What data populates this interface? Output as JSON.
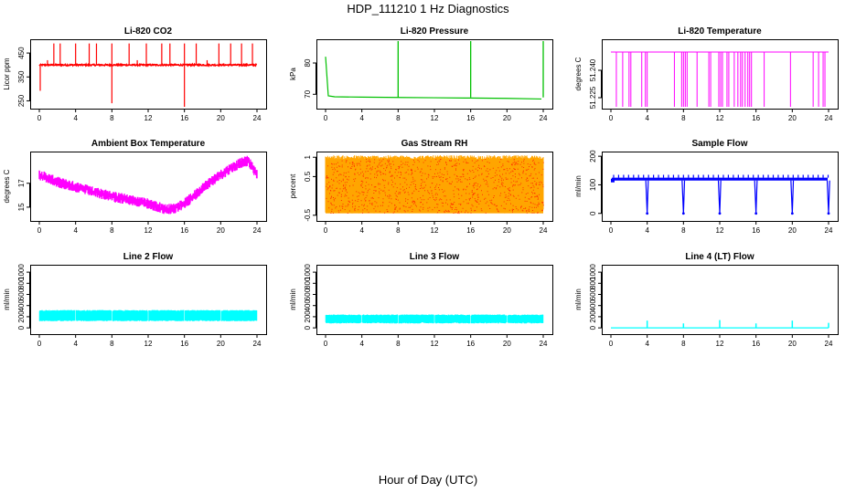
{
  "figure": {
    "title": "HDP_111210  1 Hz Diagnostics",
    "xlabel": "Hour of Day (UTC)"
  },
  "chart_data": [
    {
      "type": "line",
      "title": "Li-820 CO2",
      "ylabel": "Licor ppm",
      "color": "#ff0000",
      "xlim": [
        0,
        24
      ],
      "xticks": [
        0,
        4,
        8,
        12,
        16,
        20,
        24
      ],
      "ylim": [
        225,
        500
      ],
      "yticks": [
        250,
        350,
        450
      ],
      "baseline": 400,
      "noise": 6,
      "spikes": [
        {
          "x": 1.6,
          "y": 490
        },
        {
          "x": 2.3,
          "y": 490
        },
        {
          "x": 4.0,
          "y": 490
        },
        {
          "x": 5.5,
          "y": 490
        },
        {
          "x": 6.3,
          "y": 490
        },
        {
          "x": 8.0,
          "y": 490
        },
        {
          "x": 9.9,
          "y": 490
        },
        {
          "x": 11.8,
          "y": 490
        },
        {
          "x": 13.5,
          "y": 490
        },
        {
          "x": 14.4,
          "y": 490
        },
        {
          "x": 16.0,
          "y": 490
        },
        {
          "x": 17.3,
          "y": 490
        },
        {
          "x": 19.8,
          "y": 490
        },
        {
          "x": 21.1,
          "y": 490
        },
        {
          "x": 22.3,
          "y": 490
        },
        {
          "x": 23.5,
          "y": 490
        },
        {
          "x": 0.1,
          "y": 292
        },
        {
          "x": 8.0,
          "y": 240
        },
        {
          "x": 16.0,
          "y": 225
        },
        {
          "x": 0.9,
          "y": 420
        },
        {
          "x": 10.8,
          "y": 420
        },
        {
          "x": 18.5,
          "y": 420
        }
      ]
    },
    {
      "type": "line",
      "title": "Li-820 Pressure",
      "ylabel": "kPa",
      "color": "#00c000",
      "xlim": [
        0,
        24
      ],
      "xticks": [
        0,
        4,
        8,
        12,
        16,
        20,
        24
      ],
      "ylim": [
        66,
        87
      ],
      "yticks": [
        70,
        80
      ],
      "series": {
        "x": [
          0,
          0.3,
          1,
          4,
          8,
          12,
          16,
          20,
          23.8
        ],
        "y": [
          82,
          69.5,
          69.2,
          69.1,
          69.0,
          68.9,
          68.8,
          68.7,
          68.5
        ]
      },
      "spikes": [
        {
          "x": 8.0,
          "y": 87
        },
        {
          "x": 16.0,
          "y": 87
        },
        {
          "x": 24.0,
          "y": 87
        }
      ]
    },
    {
      "type": "line",
      "title": "Li-820 Temperature",
      "ylabel": "degrees C",
      "color": "#ff00ff",
      "xlim": [
        0,
        24
      ],
      "xticks": [
        0,
        4,
        8,
        12,
        16,
        20,
        24
      ],
      "ylim": [
        51.22,
        51.256
      ],
      "yticks": [
        51.225,
        51.24
      ],
      "ytick_labels": [
        "51.225",
        "51.240"
      ],
      "level": 51.25,
      "drops": [
        0.6,
        1.3,
        2.0,
        2.2,
        3.4,
        3.8,
        4.0,
        7.0,
        7.8,
        8.0,
        8.2,
        8.4,
        9.5,
        10.8,
        11.0,
        11.9,
        12.1,
        12.3,
        12.8,
        13.0,
        13.6,
        14.0,
        14.3,
        14.5,
        14.8,
        15.1,
        15.3,
        15.5,
        16.9,
        19.8,
        22.3,
        22.9,
        23.4,
        23.6
      ]
    },
    {
      "type": "line",
      "title": "Ambient Box Temperature",
      "ylabel": "degrees C",
      "color": "#ff00ff",
      "xlim": [
        0,
        24
      ],
      "xticks": [
        0,
        4,
        8,
        12,
        16,
        20,
        24
      ],
      "ylim": [
        14,
        19.5
      ],
      "yticks": [
        15,
        17
      ],
      "series": {
        "x": [
          0,
          2,
          4,
          6,
          8,
          10,
          12,
          14,
          15,
          16,
          17,
          18,
          19,
          20,
          21,
          22,
          23,
          24
        ],
        "y": [
          17.7,
          17.1,
          16.7,
          16.3,
          15.9,
          15.6,
          15.3,
          14.8,
          14.9,
          15.3,
          15.9,
          16.6,
          17.2,
          17.7,
          18.2,
          18.6,
          18.9,
          17.7
        ]
      },
      "band": 0.45
    },
    {
      "type": "line",
      "title": "Gas Stream RH",
      "ylabel": "percent",
      "color": "#ffa500",
      "color2": "#ff0000",
      "xlim": [
        0,
        24
      ],
      "xticks": [
        0,
        4,
        8,
        12,
        16,
        20,
        24
      ],
      "ylim": [
        -0.6,
        1.1
      ],
      "yticks": [
        -0.5,
        0.5,
        1.0
      ],
      "range": [
        -0.45,
        0.95
      ]
    },
    {
      "type": "line",
      "title": "Sample Flow",
      "ylabel": "ml/min",
      "color": "#0000ff",
      "xlim": [
        0,
        24
      ],
      "xticks": [
        0,
        4,
        8,
        12,
        16,
        20,
        24
      ],
      "ylim": [
        -20,
        210
      ],
      "yticks": [
        0,
        100,
        200
      ],
      "level": 115,
      "band_top": 125,
      "peak": 150,
      "dips": [
        4.0,
        8.0,
        12.0,
        16.0,
        20.0,
        24.0
      ]
    },
    {
      "type": "line",
      "title": "Line 2 Flow",
      "ylabel": "ml/min",
      "color": "#00ffff",
      "xlim": [
        0,
        24
      ],
      "xticks": [
        0,
        4,
        8,
        12,
        16,
        20,
        24
      ],
      "ylim": [
        -80,
        1100
      ],
      "yticks": [
        0,
        200,
        400,
        600,
        800,
        1000
      ],
      "band": [
        120,
        320
      ],
      "gaps": [
        4.0,
        8.0,
        12.0,
        16.0,
        20.0
      ]
    },
    {
      "type": "line",
      "title": "Line 3 Flow",
      "ylabel": "ml/min",
      "color": "#00ffff",
      "xlim": [
        0,
        24
      ],
      "xticks": [
        0,
        4,
        8,
        12,
        16,
        20,
        24
      ],
      "ylim": [
        -80,
        1100
      ],
      "yticks": [
        0,
        200,
        400,
        600,
        800,
        1000
      ],
      "band": [
        80,
        240
      ],
      "gaps": [
        4.0,
        8.0,
        12.0,
        16.0,
        20.0
      ]
    },
    {
      "type": "line",
      "title": "Line 4 (LT) Flow",
      "ylabel": "ml/min",
      "color": "#00ffff",
      "xlim": [
        0,
        24
      ],
      "xticks": [
        0,
        4,
        8,
        12,
        16,
        20,
        24
      ],
      "ylim": [
        -80,
        1100
      ],
      "yticks": [
        0,
        200,
        400,
        600,
        800,
        1000
      ],
      "baseline": 0,
      "spikes": [
        {
          "x": 4.0,
          "y": 130
        },
        {
          "x": 8.0,
          "y": 80
        },
        {
          "x": 12.0,
          "y": 140
        },
        {
          "x": 16.0,
          "y": 80
        },
        {
          "x": 20.0,
          "y": 130
        },
        {
          "x": 24.0,
          "y": 90
        }
      ]
    }
  ]
}
